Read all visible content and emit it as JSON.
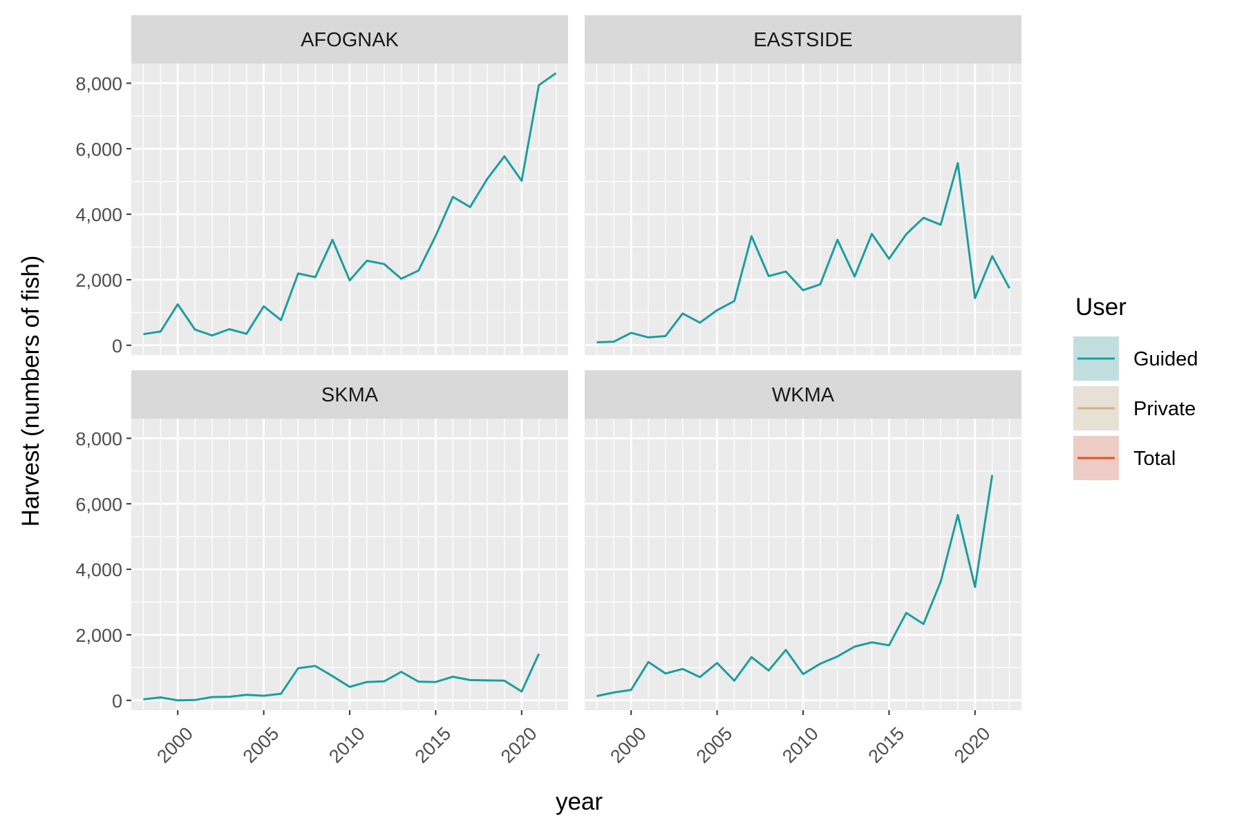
{
  "chart_data": {
    "type": "line",
    "xlabel": "year",
    "ylabel": "Harvest (numbers of fish)",
    "xlim": [
      1997.3,
      2022.7
    ],
    "ylim": [
      -300,
      8600
    ],
    "x_ticks": [
      2000,
      2005,
      2010,
      2015,
      2020
    ],
    "y_ticks": [
      0,
      2000,
      4000,
      6000,
      8000
    ],
    "y_tick_labels": [
      "0",
      "2,000",
      "4,000",
      "6,000",
      "8,000"
    ],
    "grid": true,
    "legend": {
      "title": "User",
      "position": "right",
      "entries": [
        {
          "name": "Guided",
          "color": "#1a9e9e"
        },
        {
          "name": "Private",
          "color": "#d2b27e"
        },
        {
          "name": "Total",
          "color": "#ea4f24"
        }
      ]
    },
    "panels": [
      {
        "name": "AFOGNAK",
        "series": [
          {
            "name": "Guided",
            "x": [
              1998,
              1999,
              2000,
              2001,
              2002,
              2003,
              2004,
              2005,
              2006,
              2007,
              2008,
              2009,
              2010,
              2011,
              2012,
              2013,
              2014,
              2015,
              2016,
              2017,
              2018,
              2019,
              2020,
              2021,
              2022
            ],
            "values": [
              340,
              420,
              1250,
              480,
              300,
              490,
              350,
              1190,
              770,
              2190,
              2080,
              3220,
              1980,
              2580,
              2480,
              2030,
              2280,
              3340,
              4530,
              4220,
              5080,
              5770,
              5020,
              7940,
              8310
            ]
          }
        ]
      },
      {
        "name": "EASTSIDE",
        "series": [
          {
            "name": "Guided",
            "x": [
              1998,
              1999,
              2000,
              2001,
              2002,
              2003,
              2004,
              2005,
              2006,
              2007,
              2008,
              2009,
              2010,
              2011,
              2012,
              2013,
              2014,
              2015,
              2016,
              2017,
              2018,
              2019,
              2020,
              2021,
              2022
            ],
            "values": [
              90,
              110,
              380,
              240,
              280,
              970,
              690,
              1070,
              1350,
              3330,
              2110,
              2250,
              1680,
              1860,
              3220,
              2100,
              3400,
              2640,
              3390,
              3890,
              3680,
              5560,
              1440,
              2720,
              1740
            ]
          }
        ]
      },
      {
        "name": "SKMA",
        "series": [
          {
            "name": "Guided",
            "x": [
              1998,
              1999,
              2000,
              2001,
              2002,
              2003,
              2004,
              2005,
              2006,
              2007,
              2008,
              2009,
              2010,
              2011,
              2012,
              2013,
              2014,
              2015,
              2016,
              2017,
              2018,
              2019,
              2020,
              2021
            ],
            "values": [
              30,
              90,
              0,
              10,
              100,
              110,
              170,
              140,
              200,
              980,
              1050,
              740,
              410,
              560,
              580,
              870,
              570,
              560,
              720,
              620,
              610,
              600,
              270,
              1420
            ]
          }
        ]
      },
      {
        "name": "WKMA",
        "series": [
          {
            "name": "Guided",
            "x": [
              1998,
              1999,
              2000,
              2001,
              2002,
              2003,
              2004,
              2005,
              2006,
              2007,
              2008,
              2009,
              2010,
              2011,
              2012,
              2013,
              2014,
              2015,
              2016,
              2017,
              2018,
              2019,
              2020,
              2021
            ],
            "values": [
              130,
              240,
              320,
              1170,
              820,
              960,
              710,
              1140,
              600,
              1320,
              910,
              1540,
              800,
              1120,
              1340,
              1640,
              1770,
              1680,
              2670,
              2330,
              3620,
              5660,
              3460,
              6880
            ]
          }
        ]
      }
    ]
  }
}
